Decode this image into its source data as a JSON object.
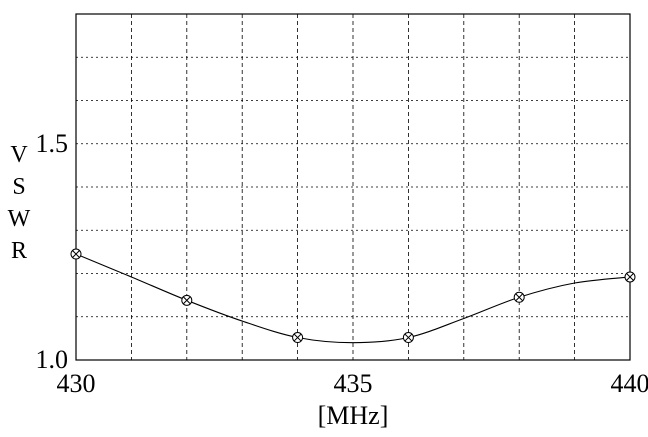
{
  "chart_data": {
    "type": "line",
    "title": "",
    "xlabel": "[MHz]",
    "ylabel": "VSWR",
    "ylabel_letters": [
      "V",
      "S",
      "W",
      "R"
    ],
    "xlim": [
      430,
      440
    ],
    "ylim": [
      1.0,
      1.8
    ],
    "x_ticks": [
      430,
      435,
      440
    ],
    "x_tick_labels": [
      "430",
      "435",
      "440"
    ],
    "y_ticks": [
      1.0,
      1.5
    ],
    "y_tick_labels": [
      "1.0",
      "1.5"
    ],
    "grid": true,
    "grid_x": [
      430,
      431,
      432,
      433,
      434,
      435,
      436,
      437,
      438,
      439,
      440
    ],
    "grid_y": [
      1.0,
      1.1,
      1.2,
      1.3,
      1.4,
      1.5,
      1.6,
      1.7,
      1.8
    ],
    "legend": "none",
    "series": [
      {
        "x": [
          430,
          432,
          434,
          436,
          438,
          440
        ],
        "y": [
          1.245,
          1.138,
          1.052,
          1.052,
          1.145,
          1.192
        ],
        "curve_x": [
          430,
          431,
          432,
          433,
          434,
          435,
          436,
          437,
          438,
          439,
          440
        ],
        "curve_y": [
          1.245,
          1.192,
          1.138,
          1.09,
          1.052,
          1.04,
          1.052,
          1.096,
          1.145,
          1.178,
          1.192
        ],
        "marker": "circle-x",
        "color": "#000000"
      }
    ]
  }
}
